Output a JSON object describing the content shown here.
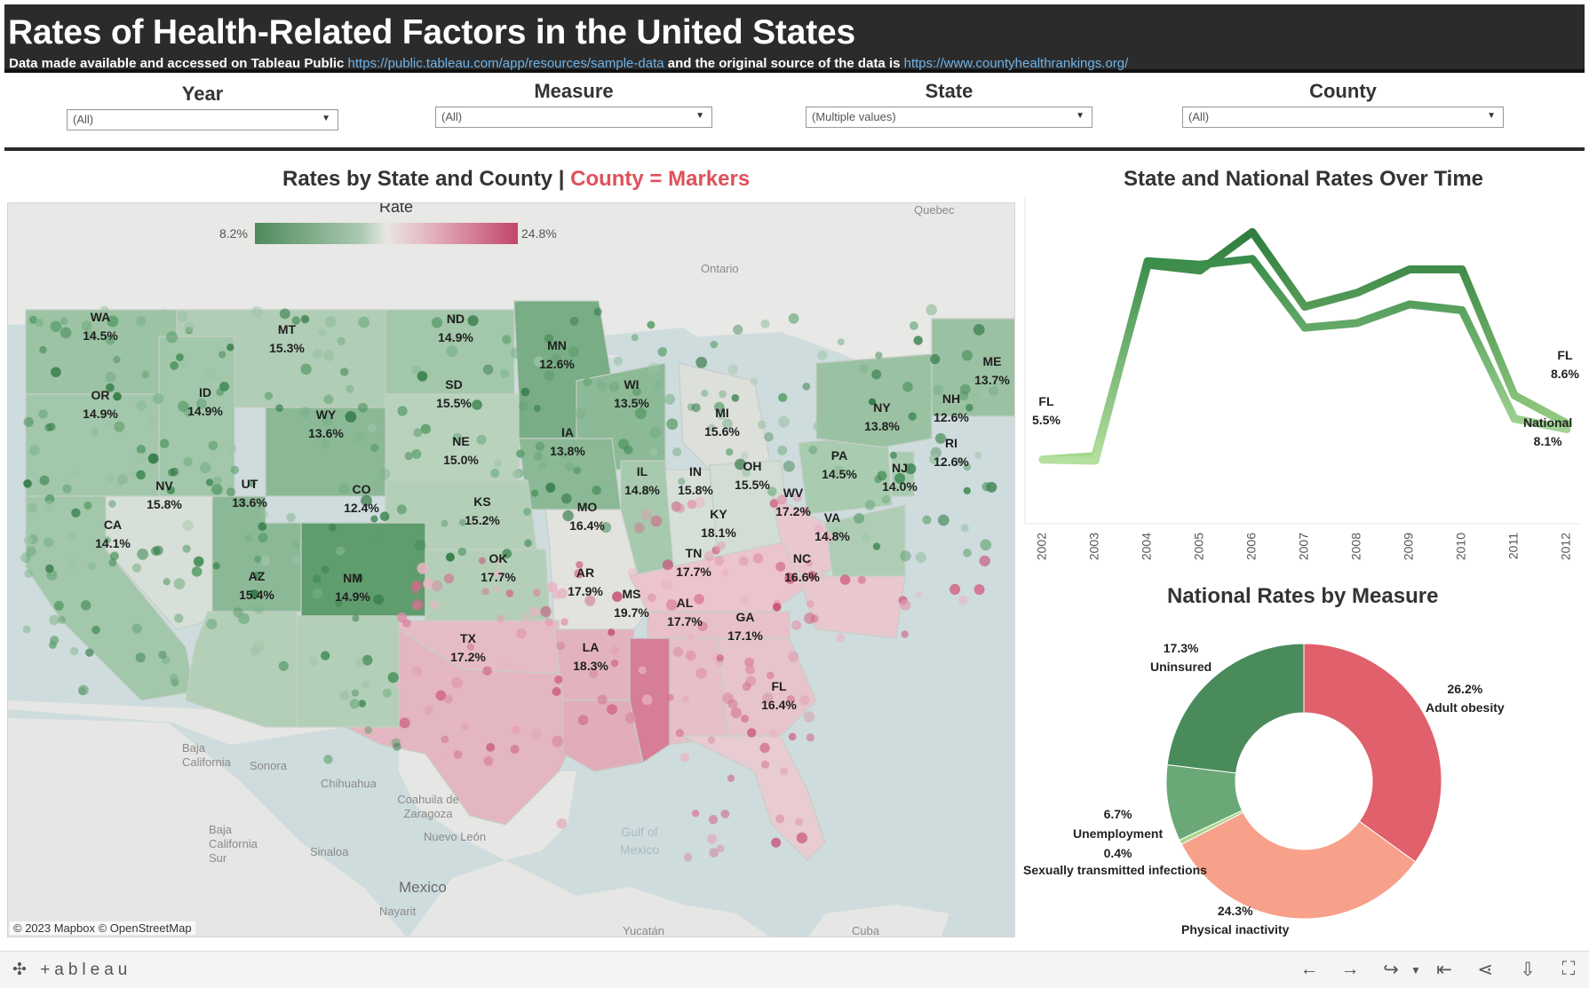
{
  "header": {
    "title": "Rates of Health-Related Factors in the United States",
    "subtitle_pre": "Data made available and accessed on Tableau Public ",
    "link1": "https://public.tableau.com/app/resources/sample-data",
    "subtitle_mid": " and the original source of the data is ",
    "link2": "https://www.countyhealthrankings.org/"
  },
  "filters": [
    {
      "label": "Year",
      "value": "(All)"
    },
    {
      "label": "Measure",
      "value": "(All)"
    },
    {
      "label": "State",
      "value": "(Multiple values)"
    },
    {
      "label": "County",
      "value": "(All)"
    }
  ],
  "map": {
    "title_main": "Rates by State and County | ",
    "title_accent": "County = Markers",
    "legend": {
      "title": "Rate",
      "min": "8.2%",
      "max": "24.8%"
    },
    "copyright": "© 2023 Mapbox © OpenStreetMap",
    "states": [
      {
        "abbr": "WA",
        "rate": "14.5%"
      },
      {
        "abbr": "MT",
        "rate": "15.3%"
      },
      {
        "abbr": "ND",
        "rate": "14.9%"
      },
      {
        "abbr": "MN",
        "rate": "12.6%"
      },
      {
        "abbr": "OR",
        "rate": "14.9%"
      },
      {
        "abbr": "ID",
        "rate": "14.9%"
      },
      {
        "abbr": "SD",
        "rate": "15.5%"
      },
      {
        "abbr": "WI",
        "rate": "13.5%"
      },
      {
        "abbr": "WY",
        "rate": "13.6%"
      },
      {
        "abbr": "MI",
        "rate": "15.6%"
      },
      {
        "abbr": "ME",
        "rate": "13.7%"
      },
      {
        "abbr": "NH",
        "rate": "12.6%"
      },
      {
        "abbr": "NY",
        "rate": "13.8%"
      },
      {
        "abbr": "IA",
        "rate": "13.8%"
      },
      {
        "abbr": "NE",
        "rate": "15.0%"
      },
      {
        "abbr": "RI",
        "rate": "12.6%"
      },
      {
        "abbr": "PA",
        "rate": "14.5%"
      },
      {
        "abbr": "IL",
        "rate": "14.8%"
      },
      {
        "abbr": "IN",
        "rate": "15.8%"
      },
      {
        "abbr": "OH",
        "rate": "15.5%"
      },
      {
        "abbr": "NJ",
        "rate": "14.0%"
      },
      {
        "abbr": "NV",
        "rate": "15.8%"
      },
      {
        "abbr": "UT",
        "rate": "13.6%"
      },
      {
        "abbr": "CO",
        "rate": "12.4%"
      },
      {
        "abbr": "KS",
        "rate": "15.2%"
      },
      {
        "abbr": "MO",
        "rate": "16.4%"
      },
      {
        "abbr": "WV",
        "rate": "17.2%"
      },
      {
        "abbr": "CA",
        "rate": "14.1%"
      },
      {
        "abbr": "KY",
        "rate": "18.1%"
      },
      {
        "abbr": "VA",
        "rate": "14.8%"
      },
      {
        "abbr": "OK",
        "rate": "17.7%"
      },
      {
        "abbr": "TN",
        "rate": "17.7%"
      },
      {
        "abbr": "NC",
        "rate": "16.6%"
      },
      {
        "abbr": "AZ",
        "rate": "15.4%"
      },
      {
        "abbr": "NM",
        "rate": "14.9%"
      },
      {
        "abbr": "AR",
        "rate": "17.9%"
      },
      {
        "abbr": "MS",
        "rate": "19.7%"
      },
      {
        "abbr": "AL",
        "rate": "17.7%"
      },
      {
        "abbr": "GA",
        "rate": "17.1%"
      },
      {
        "abbr": "TX",
        "rate": "17.2%"
      },
      {
        "abbr": "LA",
        "rate": "18.3%"
      },
      {
        "abbr": "FL",
        "rate": "16.4%"
      }
    ],
    "geo_labels": [
      "Quebec",
      "Ontario",
      "Baja California",
      "Sonora",
      "Chihuahua",
      "Coahuila de Zaragoza",
      "Baja California Sur",
      "Sinaloa",
      "Nuevo León",
      "Mexico",
      "Nayarit",
      "Gulf of Mexico",
      "Yucatán",
      "Cuba"
    ]
  },
  "line_chart": {
    "title": "State and National Rates Over Time",
    "chart_data": {
      "type": "line",
      "categories": [
        "2002",
        "2003",
        "2004",
        "2005",
        "2006",
        "2007",
        "2008",
        "2009",
        "2010",
        "2011",
        "2012"
      ],
      "series": [
        {
          "name": "FL",
          "values": [
            5.5,
            5.8,
            22.2,
            21.7,
            25.0,
            18.6,
            19.8,
            21.8,
            21.8,
            11.0,
            8.6
          ]
        },
        {
          "name": "National",
          "values": [
            5.5,
            5.4,
            22.5,
            22.2,
            22.7,
            16.8,
            17.2,
            18.8,
            18.3,
            9.0,
            8.1
          ]
        }
      ],
      "ylim": [
        0,
        28
      ]
    },
    "end_labels": {
      "start_name": "FL",
      "start_value": "5.5%",
      "fl_name": "FL",
      "fl_value": "8.6%",
      "nat_name": "National",
      "nat_value": "8.1%"
    },
    "colors": {
      "fl": "#2e7d3e",
      "national": "#3f9350"
    }
  },
  "pie_chart": {
    "title": "National Rates by Measure",
    "chart_data": {
      "type": "pie",
      "categories": [
        "Adult obesity",
        "Physical inactivity",
        "Sexually transmitted infections",
        "Unemployment",
        "Uninsured"
      ],
      "values": [
        26.2,
        24.3,
        0.4,
        6.7,
        17.3
      ],
      "labels": [
        "26.2%",
        "24.3%",
        "0.4%",
        "6.7%",
        "17.3%"
      ],
      "colors": [
        "#e0606b",
        "#f7a08a",
        "#a6d58a",
        "#6ba877",
        "#4a8b5c"
      ]
    }
  },
  "toolbar": {
    "logo": "+ableau",
    "icons": [
      "undo-icon",
      "redo-icon",
      "revert-icon",
      "revert-all-icon",
      "share-icon",
      "download-icon",
      "fullscreen-icon"
    ]
  }
}
